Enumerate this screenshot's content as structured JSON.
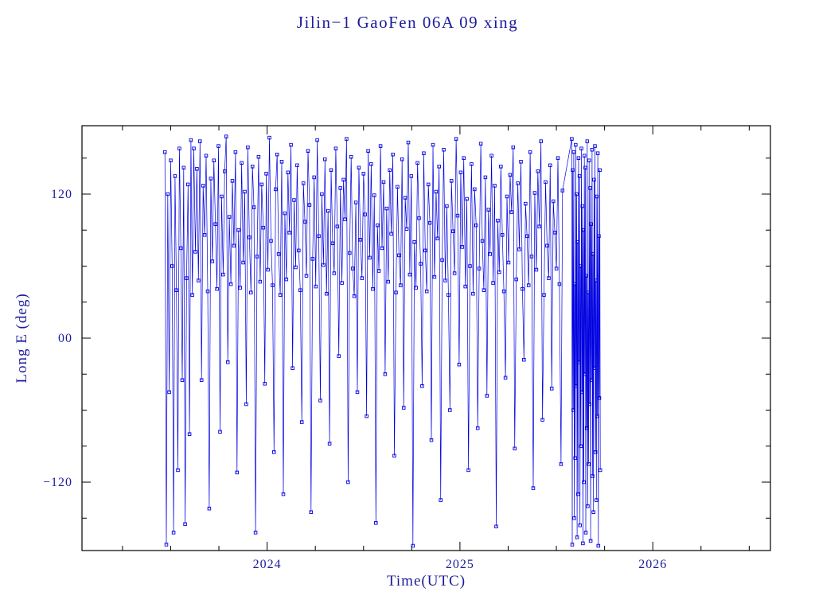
{
  "colors": {
    "text": "#1c1c9c",
    "frame": "#000000",
    "data": "#0000e0",
    "background": "#ffffff"
  },
  "chart_data": {
    "type": "scatter",
    "title": "Jilin−1 GaoFen 06A 09 xing",
    "xlabel": "Time(UTC)",
    "ylabel": "Long E (deg)",
    "xlim": [
      2023.04,
      2026.61
    ],
    "ylim": [
      -177,
      177
    ],
    "grid": false,
    "legend": "none",
    "marker": "open-square",
    "marker_size": 3.6,
    "line_width": 0.7,
    "xticks": [
      {
        "v": 2024,
        "label": "2024"
      },
      {
        "v": 2025,
        "label": "2025"
      },
      {
        "v": 2026,
        "label": "2026"
      }
    ],
    "xminor": [
      2023.25,
      2023.5,
      2023.75,
      2024.25,
      2024.5,
      2024.75,
      2025.25,
      2025.5,
      2025.75,
      2026.25,
      2026.5
    ],
    "yticks": [
      {
        "v": 120,
        "label": "120"
      },
      {
        "v": 0,
        "label": "00"
      },
      {
        "v": -120,
        "label": "−120"
      }
    ],
    "yminor": [
      -150,
      -90,
      -60,
      -30,
      30,
      60,
      90,
      150
    ],
    "series_name": "longitude-crossings",
    "segments": [
      {
        "t_start": 2023.47,
        "t_step": 0.0075,
        "lon": [
          155,
          -172,
          120,
          -45,
          148,
          60,
          -162,
          135,
          40,
          -110,
          158,
          75,
          -35,
          142,
          -155,
          50,
          128,
          -80,
          165,
          36
        ]
      },
      {
        "t_start": 2023.62,
        "t_step": 0.008,
        "lon": [
          158,
          72,
          141,
          48,
          164,
          -35,
          127,
          86,
          152,
          39,
          -142,
          133,
          64,
          148,
          95,
          41,
          160,
          -78,
          118,
          53,
          139,
          168,
          -20,
          101,
          45,
          131,
          77,
          155,
          -112,
          90,
          42,
          146,
          63,
          122,
          -55,
          159,
          84,
          38,
          143,
          109,
          -162,
          68,
          151,
          47,
          128,
          92,
          -38,
          137,
          57,
          167,
          81,
          44,
          -95,
          124,
          153,
          70,
          36,
          147,
          -130,
          104,
          49,
          138,
          88,
          161,
          -25,
          115,
          59,
          144,
          73,
          40,
          -70,
          129,
          97,
          52,
          156,
          111,
          -145,
          66,
          134,
          43,
          165,
          85,
          -52,
          120,
          61,
          149,
          37,
          106,
          -88,
          140,
          79,
          54,
          158,
          93,
          -15,
          125,
          46,
          132,
          99,
          166,
          -120,
          71,
          151,
          58,
          35,
          113,
          -45,
          142,
          82,
          50,
          137,
          103,
          -65,
          156,
          67,
          145,
          41,
          119,
          -154,
          94,
          56,
          160,
          75,
          130,
          -30,
          108,
          47,
          140,
          87,
          153,
          -98,
          38,
          126,
          69,
          44,
          149,
          -58,
          117,
          91,
          163,
          53,
          135,
          -173,
          80,
          42,
          146,
          100,
          62,
          -40,
          154,
          73,
          39,
          128,
          96,
          -85,
          161,
          51,
          122,
          83,
          143,
          -135,
          65,
          157,
          48,
          110,
          36,
          -60,
          131,
          89,
          54,
          166,
          102,
          -22,
          138,
          76,
          150,
          43,
          116,
          -110,
          60,
          145,
          37,
          124,
          94,
          -75,
          58,
          162,
          81,
          40,
          134,
          -48,
          107,
          70,
          152,
          46,
          127,
          -157,
          98,
          55,
          143,
          86,
          39,
          -33,
          118,
          63,
          136,
          105,
          159,
          -92,
          49,
          129,
          74,
          147,
          41,
          -18,
          112,
          85,
          44,
          155,
          68,
          -125,
          121,
          57,
          139,
          93,
          164,
          -68,
          36,
          130,
          77,
          50,
          144,
          -42,
          114,
          88,
          58,
          150,
          45,
          -105,
          123
        ]
      },
      {
        "t_start": 2025.58,
        "t_step": 0.0025,
        "lon": [
          166,
          -172,
          140,
          -60,
          155,
          -150,
          45,
          -100,
          161,
          -40,
          120,
          -166,
          80,
          -130,
          150,
          -20,
          135,
          -156,
          60,
          -90,
          158,
          -45,
          110,
          -171,
          90,
          -120,
          152,
          -30,
          142,
          -162,
          52,
          -75,
          164,
          -140,
          38,
          -105,
          148,
          -55,
          125,
          -169,
          95,
          -35,
          157,
          -115,
          70,
          -145,
          132,
          -25,
          160,
          -95,
          48,
          -135,
          118,
          -65,
          154,
          -173,
          85,
          -50,
          140,
          -110
        ]
      }
    ]
  }
}
